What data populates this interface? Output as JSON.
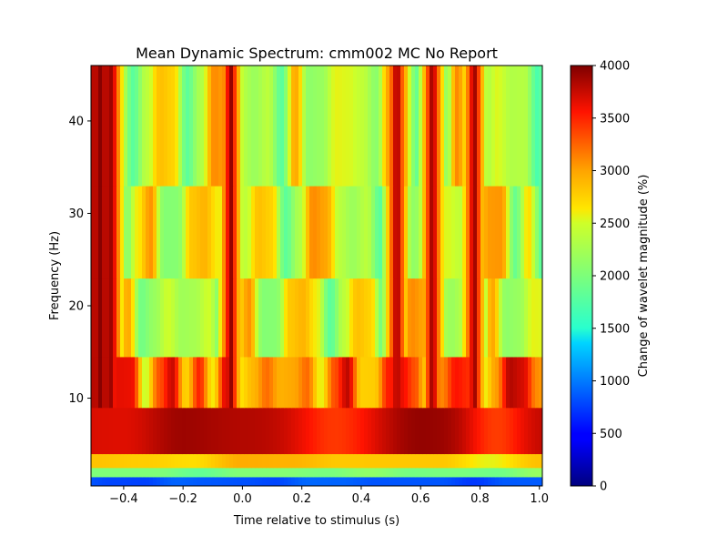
{
  "chart_data": {
    "type": "heatmap",
    "title": "Mean Dynamic Spectrum: cmm002 MC No Report",
    "xlabel": "Time relative to stimulus (s)",
    "ylabel": "Frequency (Hz)",
    "colorbar_label": "Change of wavelet magnitude (%)",
    "colormap": "jet",
    "xlim": [
      -0.51,
      1.01
    ],
    "ylim": [
      0.5,
      46
    ],
    "clim": [
      0,
      4000
    ],
    "xticks": [
      -0.4,
      -0.2,
      0.0,
      0.2,
      0.4,
      0.6,
      0.8,
      1.0
    ],
    "xtick_labels": [
      "−0.4",
      "−0.2",
      "0.0",
      "0.2",
      "0.4",
      "0.6",
      "0.8",
      "1.0"
    ],
    "yticks": [
      10,
      20,
      30,
      40
    ],
    "ytick_labels": [
      "10",
      "20",
      "30",
      "40"
    ],
    "cticks": [
      0,
      500,
      1000,
      1500,
      2000,
      2500,
      3000,
      3500,
      4000
    ],
    "ctick_labels": [
      "0",
      "500",
      "1000",
      "1500",
      "2000",
      "2500",
      "3000",
      "3500",
      "4000"
    ],
    "grid": false,
    "frequency_bands": [
      {
        "freq_min": 0.5,
        "freq_max": 1.5,
        "level": "blue"
      },
      {
        "freq_min": 1.5,
        "freq_max": 2.5,
        "level": "cyan"
      },
      {
        "freq_min": 2.5,
        "freq_max": 4.0,
        "level": "yellow-orange"
      },
      {
        "freq_min": 4.0,
        "freq_max": 9.0,
        "level": "dark-red"
      },
      {
        "freq_min": 9.0,
        "freq_max": 14.5,
        "level": "orange-red"
      },
      {
        "freq_min": 14.5,
        "freq_max": 23.0,
        "level": "mixed"
      },
      {
        "freq_min": 23.0,
        "freq_max": 33.0,
        "level": "mixed"
      },
      {
        "freq_min": 33.0,
        "freq_max": 46.0,
        "level": "mixed"
      }
    ],
    "high_power_times_s": [
      -0.48,
      -0.44,
      -0.04,
      0.52,
      0.64,
      0.78
    ]
  }
}
